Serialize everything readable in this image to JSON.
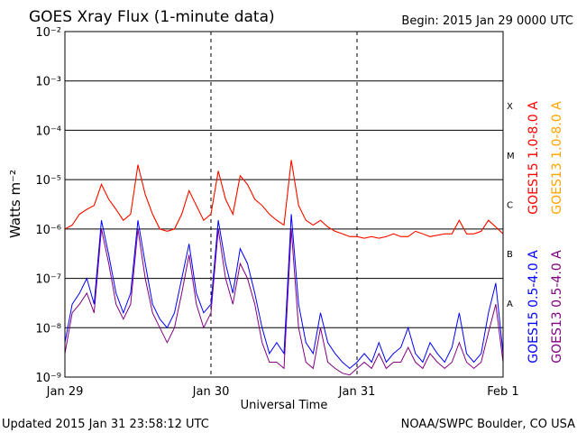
{
  "chart_data": {
    "type": "line",
    "title": "GOES Xray Flux (1-minute data)",
    "subtitle": "Begin:  2015 Jan 29 0000 UTC",
    "y_label": "Watts m⁻²",
    "x_label": "Universal Time",
    "footer_left": "Updated 2015 Jan 31 23:58:12 UTC",
    "footer_right": "NOAA/SWPC Boulder, CO USA",
    "ylog": true,
    "grid": true,
    "xlim": [
      0,
      3
    ],
    "xticks": [
      {
        "value": 0,
        "label": "Jan 29"
      },
      {
        "value": 1,
        "label": "Jan 30"
      },
      {
        "value": 2,
        "label": "Jan 31"
      },
      {
        "value": 3,
        "label": "Feb 1"
      }
    ],
    "ylim": [
      1e-09,
      0.01
    ],
    "yticks": [
      {
        "value": 1e-09,
        "label": "10⁻⁹"
      },
      {
        "value": 1e-08,
        "label": "10⁻⁸"
      },
      {
        "value": 1e-07,
        "label": "10⁻⁷"
      },
      {
        "value": 1e-06,
        "label": "10⁻⁶"
      },
      {
        "value": 1e-05,
        "label": "10⁻⁵"
      },
      {
        "value": 0.0001,
        "label": "10⁻⁴"
      },
      {
        "value": 0.001,
        "label": "10⁻³"
      },
      {
        "value": 0.01,
        "label": "10⁻²"
      }
    ],
    "class_labels": [
      {
        "label": "X",
        "value": 0.0001
      },
      {
        "label": "M",
        "value": 1e-05
      },
      {
        "label": "C",
        "value": 1e-06
      },
      {
        "label": "B",
        "value": 1e-07
      },
      {
        "label": "A",
        "value": 1e-08
      }
    ],
    "x": [
      0,
      0.05,
      0.1,
      0.15,
      0.2,
      0.25,
      0.3,
      0.35,
      0.4,
      0.45,
      0.5,
      0.55,
      0.6,
      0.65,
      0.7,
      0.75,
      0.8,
      0.85,
      0.9,
      0.95,
      1,
      1.05,
      1.1,
      1.15,
      1.2,
      1.25,
      1.3,
      1.35,
      1.4,
      1.45,
      1.5,
      1.55,
      1.6,
      1.65,
      1.7,
      1.75,
      1.8,
      1.85,
      1.9,
      1.95,
      2,
      2.05,
      2.1,
      2.15,
      2.2,
      2.25,
      2.3,
      2.35,
      2.4,
      2.45,
      2.5,
      2.55,
      2.6,
      2.65,
      2.7,
      2.75,
      2.8,
      2.85,
      2.9,
      2.95,
      3
    ],
    "series": [
      {
        "name": "GOES13 1.0-8.0 A",
        "color": "#ffa500",
        "values": [
          1e-06,
          1.2e-06,
          2e-06,
          2.5e-06,
          3e-06,
          8e-06,
          4e-06,
          2.5e-06,
          1.5e-06,
          2e-06,
          2e-05,
          5e-06,
          2e-06,
          1e-06,
          9e-07,
          1e-06,
          2e-06,
          6e-06,
          3e-06,
          1.5e-06,
          2e-06,
          1.5e-05,
          4e-06,
          2e-06,
          1.2e-05,
          8e-06,
          4e-06,
          3e-06,
          2e-06,
          1.5e-06,
          1.2e-06,
          2.5e-05,
          3e-06,
          1.5e-06,
          1.2e-06,
          1.5e-06,
          1.1e-06,
          9e-07,
          8e-07,
          7e-07,
          7e-07,
          6.5e-07,
          7e-07,
          6.5e-07,
          7e-07,
          8e-07,
          7e-07,
          7e-07,
          9e-07,
          8e-07,
          7e-07,
          7.5e-07,
          8e-07,
          8e-07,
          1.5e-06,
          8e-07,
          8e-07,
          9e-07,
          1.5e-06,
          1.1e-06,
          8e-07
        ]
      },
      {
        "name": "GOES15 1.0-8.0 A",
        "color": "#ff0000",
        "values": [
          1e-06,
          1.2e-06,
          2e-06,
          2.5e-06,
          3e-06,
          8e-06,
          4e-06,
          2.5e-06,
          1.5e-06,
          2e-06,
          2e-05,
          5e-06,
          2e-06,
          1e-06,
          9e-07,
          1e-06,
          2e-06,
          6e-06,
          3e-06,
          1.5e-06,
          2e-06,
          1.5e-05,
          4e-06,
          2e-06,
          1.2e-05,
          8e-06,
          4e-06,
          3e-06,
          2e-06,
          1.5e-06,
          1.2e-06,
          2.5e-05,
          3e-06,
          1.5e-06,
          1.2e-06,
          1.5e-06,
          1.1e-06,
          9e-07,
          8e-07,
          7e-07,
          7e-07,
          6.5e-07,
          7e-07,
          6.5e-07,
          7e-07,
          8e-07,
          7e-07,
          7e-07,
          9e-07,
          8e-07,
          7e-07,
          7.5e-07,
          8e-07,
          8e-07,
          1.5e-06,
          8e-07,
          8e-07,
          9e-07,
          1.5e-06,
          1.1e-06,
          8e-07
        ]
      },
      {
        "name": "GOES13 0.5-4.0 A",
        "color": "#800080",
        "values": [
          3e-09,
          2e-08,
          3e-08,
          5e-08,
          2e-08,
          1e-06,
          2e-07,
          3e-08,
          1.5e-08,
          3e-08,
          1e-06,
          1e-07,
          2e-08,
          1e-08,
          5e-09,
          1e-08,
          5e-08,
          3e-07,
          3e-08,
          1e-08,
          2e-08,
          1e-06,
          1e-07,
          3e-08,
          2e-07,
          1e-07,
          3e-08,
          5e-09,
          2e-09,
          2e-09,
          1.5e-09,
          1e-06,
          1e-08,
          2e-09,
          1.5e-09,
          1e-08,
          2e-09,
          1.5e-09,
          1.2e-09,
          1.1e-09,
          1.5e-09,
          2e-09,
          1.5e-09,
          3e-09,
          1.5e-09,
          2e-09,
          2e-09,
          4e-09,
          2e-09,
          1.5e-09,
          3e-09,
          2e-09,
          1.5e-09,
          2e-09,
          5e-09,
          2e-09,
          1.5e-09,
          2e-09,
          8e-09,
          3e-08,
          2e-09
        ]
      },
      {
        "name": "GOES15 0.5-4.0 A",
        "color": "#0000ff",
        "values": [
          5e-09,
          3e-08,
          5e-08,
          1e-07,
          3e-08,
          1.5e-06,
          3e-07,
          5e-08,
          2e-08,
          5e-08,
          1.5e-06,
          2e-07,
          3e-08,
          1.5e-08,
          1e-08,
          2e-08,
          1e-07,
          5e-07,
          5e-08,
          2e-08,
          3e-08,
          1.5e-06,
          2e-07,
          5e-08,
          4e-07,
          2e-07,
          5e-08,
          1e-08,
          3e-09,
          5e-09,
          3e-09,
          2e-06,
          3e-08,
          5e-09,
          3e-09,
          2e-08,
          5e-09,
          3e-09,
          2e-09,
          1.5e-09,
          2e-09,
          3e-09,
          2e-09,
          5e-09,
          2e-09,
          3e-09,
          4e-09,
          1e-08,
          3e-09,
          2e-09,
          5e-09,
          3e-09,
          2e-09,
          4e-09,
          2e-08,
          3e-09,
          2e-09,
          3e-09,
          2e-08,
          8e-08,
          3e-09
        ]
      }
    ]
  }
}
